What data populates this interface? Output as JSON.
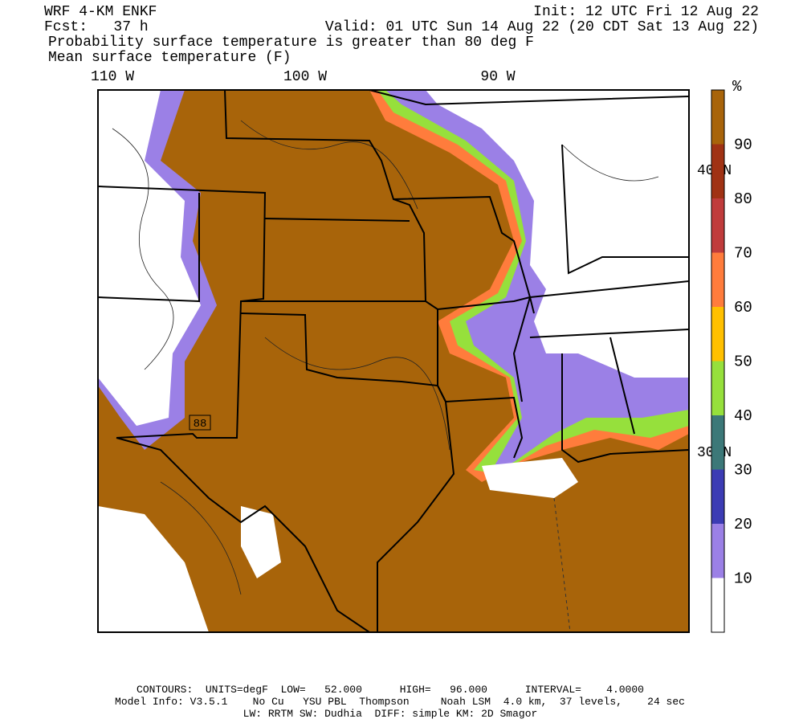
{
  "header": {
    "line1_left": "WRF 4-KM ENKF",
    "line1_right": "Init: 12 UTC Fri 12 Aug 22",
    "line2_left": "Fcst:   37 h",
    "line2_right": "Valid: 01 UTC Sun 14 Aug 22 (20 CDT Sat 13 Aug 22)",
    "line3": "Probability surface temperature is greater than 80 deg F",
    "line4": "Mean surface temperature (F)"
  },
  "map": {
    "lon_labels": [
      "110 W",
      "100 W",
      "90 W"
    ],
    "lat_labels": [
      "40 N",
      "30 N"
    ],
    "contour_label": "88"
  },
  "colorbar": {
    "unit": "%",
    "labels": [
      "10",
      "20",
      "30",
      "40",
      "50",
      "60",
      "70",
      "80",
      "90"
    ],
    "colors": [
      "#ffffff",
      "#9b80e6",
      "#3c3cb4",
      "#3c7878",
      "#96e03c",
      "#ffc000",
      "#ff7c3c",
      "#c03c3c",
      "#a03214",
      "#a8640a"
    ]
  },
  "footer": {
    "line1": "CONTOURS:  UNITS=degF  LOW=   52.000      HIGH=   96.000      INTERVAL=    4.0000",
    "line2": "Model Info: V3.5.1    No Cu   YSU PBL  Thompson     Noah LSM  4.0 km,  37 levels,    24 sec",
    "line3": "LW: RRTM SW: Dudhia  DIFF: simple KM: 2D Smagor"
  }
}
